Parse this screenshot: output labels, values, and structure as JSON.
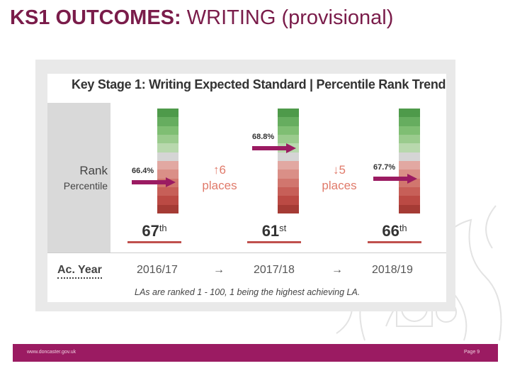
{
  "slide": {
    "title_bold": "KS1 OUTCOMES:",
    "title_rest": "WRITING (provisional)"
  },
  "card": {
    "title": "Key Stage 1: Writing Expected Standard | Percentile Rank Trend",
    "rank_label": "Rank",
    "percentile_label": "Percentile",
    "ac_year_label": "Ac. Year",
    "note": "LAs are ranked 1 - 100, 1 being the highest achieving LA."
  },
  "years": [
    {
      "year": "2016/17",
      "value": "66.4%",
      "rank_number": "67",
      "rank_suffix": "th",
      "arrow_level": 0.7
    },
    {
      "year": "2017/18",
      "value": "68.8%",
      "rank_number": "61",
      "rank_suffix": "st",
      "arrow_level": 0.38
    },
    {
      "year": "2018/19",
      "value": "67.7%",
      "rank_number": "66",
      "rank_suffix": "th",
      "arrow_level": 0.67
    }
  ],
  "movements": [
    {
      "arrow": "↑",
      "count": "6",
      "word": "places",
      "direction": "up"
    },
    {
      "arrow": "↓",
      "count": "5",
      "word": "places",
      "direction": "down"
    }
  ],
  "year_arrow": "→",
  "scale_colors": [
    "#4e9a4a",
    "#66ad5f",
    "#7fbe73",
    "#9acb8d",
    "#b8d8ad",
    "#d5d5d5",
    "#e2a8a2",
    "#da8f87",
    "#d1766e",
    "#c75f58",
    "#bb4a44",
    "#a53b35"
  ],
  "colors": {
    "title": "#7a1c4a",
    "arrow": "#9b1b62",
    "footer": "#9b1b62"
  },
  "footer": {
    "url": "www.doncaster.gov.uk",
    "page": "Page 9"
  }
}
